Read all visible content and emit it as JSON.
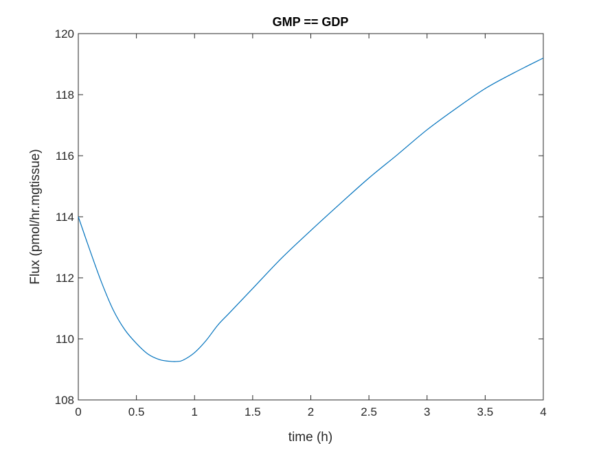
{
  "chart_data": {
    "type": "line",
    "title": "GMP == GDP",
    "xlabel": "time (h)",
    "ylabel": "Flux (pmol/hr.mgtissue)",
    "xlim": [
      0,
      4
    ],
    "ylim": [
      108,
      120
    ],
    "xticks": [
      0,
      0.5,
      1,
      1.5,
      2,
      2.5,
      3,
      3.5,
      4
    ],
    "xtick_labels": [
      "0",
      "0.5",
      "1",
      "1.5",
      "2",
      "2.5",
      "3",
      "3.5",
      "4"
    ],
    "yticks": [
      108,
      110,
      112,
      114,
      116,
      118,
      120
    ],
    "ytick_labels": [
      "108",
      "110",
      "112",
      "114",
      "116",
      "118",
      "120"
    ],
    "grid": false,
    "series": [
      {
        "color": "#0072BD",
        "x": [
          0,
          0.1,
          0.2,
          0.3,
          0.4,
          0.5,
          0.6,
          0.7,
          0.8,
          0.85,
          0.9,
          1.0,
          1.1,
          1.2,
          1.3,
          1.5,
          1.75,
          2.0,
          2.25,
          2.5,
          2.75,
          3.0,
          3.25,
          3.5,
          3.75,
          4.0
        ],
        "y": [
          114.0,
          112.9,
          111.85,
          110.95,
          110.3,
          109.85,
          109.5,
          109.32,
          109.26,
          109.26,
          109.3,
          109.55,
          109.95,
          110.45,
          110.85,
          111.65,
          112.65,
          113.55,
          114.42,
          115.27,
          116.05,
          116.85,
          117.55,
          118.2,
          118.72,
          119.2
        ]
      }
    ]
  }
}
